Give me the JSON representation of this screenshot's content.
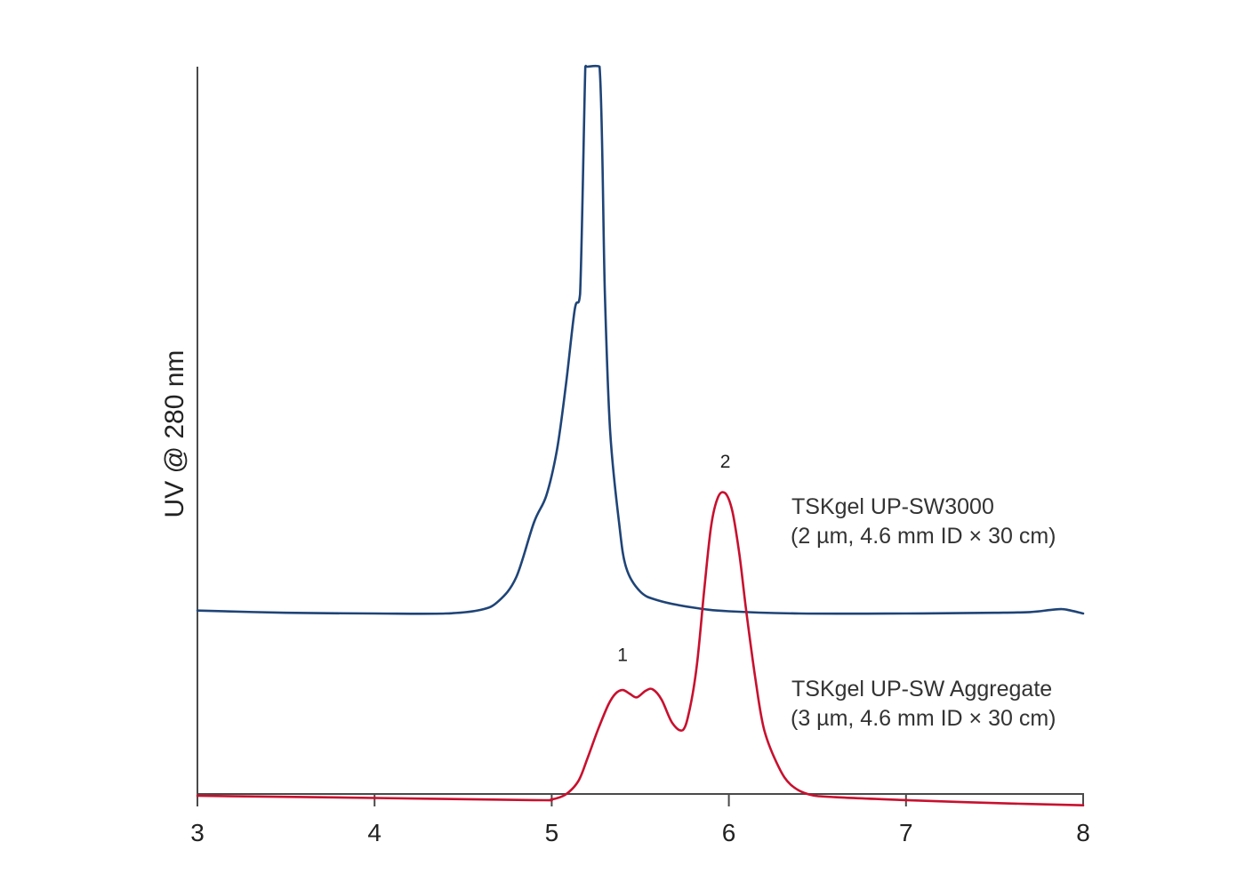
{
  "chart_data": {
    "type": "line",
    "title": "",
    "xlabel": "",
    "ylabel": "UV @ 280 nm",
    "xlim": [
      3,
      8
    ],
    "xticks": [
      3,
      4,
      5,
      6,
      7,
      8
    ],
    "ylim": [
      0,
      100
    ],
    "grid": false,
    "legend": "inline-right",
    "series": [
      {
        "name": "TSKgel UP-SW3000",
        "subtitle": "(2 µm, 4.6 mm ID × 30 cm)",
        "color": "#1f4477",
        "x": [
          3.0,
          3.5,
          4.0,
          4.4,
          4.6,
          4.7,
          4.8,
          4.9,
          4.97,
          5.03,
          5.08,
          5.13,
          5.16,
          5.19,
          5.2,
          5.27,
          5.3,
          5.33,
          5.38,
          5.42,
          5.5,
          5.6,
          5.8,
          6.0,
          6.4,
          7.0,
          7.5,
          7.7,
          7.82,
          7.88,
          7.93,
          8.0
        ],
        "y": [
          25.4,
          25.1,
          25.0,
          25.0,
          25.5,
          26.7,
          30.0,
          37.5,
          41.2,
          47.5,
          56.3,
          66.7,
          68.8,
          100,
          100,
          100,
          68.8,
          50.0,
          37.5,
          31.3,
          28.0,
          26.8,
          25.8,
          25.3,
          25.0,
          25.0,
          25.1,
          25.2,
          25.5,
          25.6,
          25.4,
          25.0
        ]
      },
      {
        "name": "TSKgel UP-SW Aggregate",
        "subtitle": "(3 µm, 4.6 mm ID × 30 cm)",
        "color": "#c8102e",
        "x": [
          3.0,
          4.0,
          4.9,
          5.0,
          5.08,
          5.15,
          5.2,
          5.26,
          5.32,
          5.36,
          5.4,
          5.44,
          5.48,
          5.53,
          5.57,
          5.62,
          5.68,
          5.74,
          5.78,
          5.82,
          5.86,
          5.9,
          5.94,
          5.98,
          6.02,
          6.06,
          6.1,
          6.15,
          6.2,
          6.28,
          6.35,
          6.45,
          6.6,
          7.0,
          7.5,
          8.0
        ],
        "y": [
          0.0,
          -0.3,
          -0.6,
          -0.5,
          0.2,
          2.0,
          5.0,
          9.0,
          12.5,
          14.0,
          14.5,
          14.0,
          13.5,
          14.4,
          14.6,
          13.2,
          10.0,
          9.0,
          12.0,
          18.0,
          28.0,
          37.0,
          41.0,
          41.5,
          39.0,
          33.0,
          25.0,
          16.0,
          9.0,
          4.0,
          1.5,
          0.2,
          -0.2,
          -0.6,
          -1.0,
          -1.3
        ]
      }
    ],
    "annotations": [
      {
        "text": "1",
        "x": 5.4,
        "y": 18.5
      },
      {
        "text": "2",
        "x": 5.98,
        "y": 45.0
      }
    ]
  }
}
